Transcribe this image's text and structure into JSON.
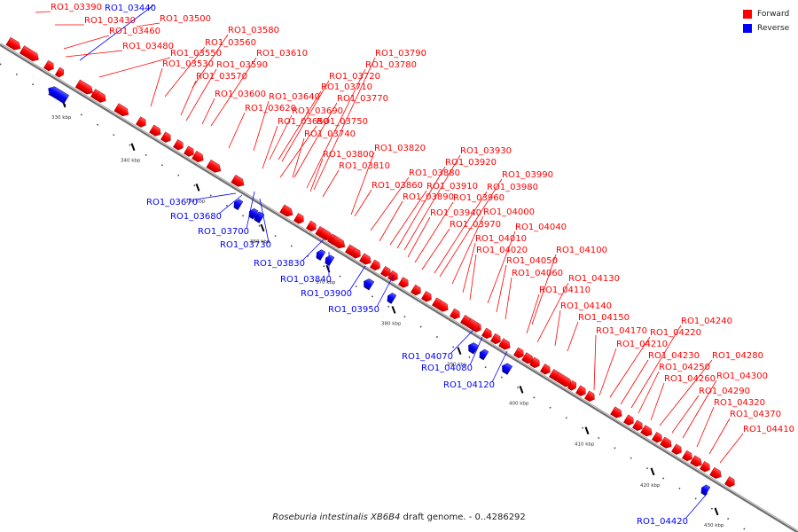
{
  "caption": {
    "organism": "Roseburia intestinalis XB6B4",
    "suffix": "draft genome. - 0..4286292"
  },
  "legend": [
    {
      "label": "Forward",
      "color": "#ff0000"
    },
    {
      "label": "Reverse",
      "color": "#0000ff"
    }
  ],
  "colors": {
    "forward": "#ff0000",
    "reverse": "#0000ff",
    "backbone": "#888888"
  },
  "scale": {
    "ticks": [
      {
        "kbp": 330,
        "label": "330 kbp"
      },
      {
        "kbp": 340,
        "label": "340 kbp"
      },
      {
        "kbp": 350,
        "label": "350 kbp"
      },
      {
        "kbp": 360,
        "label": "360 kbp"
      },
      {
        "kbp": 370,
        "label": "370 kbp"
      },
      {
        "kbp": 380,
        "label": "380 kbp"
      },
      {
        "kbp": 390,
        "label": "390 kbp"
      },
      {
        "kbp": 400,
        "label": "400 kbp"
      },
      {
        "kbp": 410,
        "label": "410 kbp"
      },
      {
        "kbp": 420,
        "label": "420 kbp"
      },
      {
        "kbp": 430,
        "label": "430 kbp"
      }
    ]
  },
  "genes": [
    {
      "id": "RO1_03390",
      "strand": "forward"
    },
    {
      "id": "RO1_03430",
      "strand": "forward"
    },
    {
      "id": "RO1_03440",
      "strand": "reverse"
    },
    {
      "id": "RO1_03460",
      "strand": "forward"
    },
    {
      "id": "RO1_03480",
      "strand": "forward"
    },
    {
      "id": "RO1_03500",
      "strand": "forward"
    },
    {
      "id": "RO1_03530",
      "strand": "forward"
    },
    {
      "id": "RO1_03550",
      "strand": "forward"
    },
    {
      "id": "RO1_03560",
      "strand": "forward"
    },
    {
      "id": "RO1_03570",
      "strand": "forward"
    },
    {
      "id": "RO1_03580",
      "strand": "forward"
    },
    {
      "id": "RO1_03590",
      "strand": "forward"
    },
    {
      "id": "RO1_03600",
      "strand": "forward"
    },
    {
      "id": "RO1_03610",
      "strand": "forward"
    },
    {
      "id": "RO1_03620",
      "strand": "forward"
    },
    {
      "id": "RO1_03640",
      "strand": "forward"
    },
    {
      "id": "RO1_03650",
      "strand": "forward"
    },
    {
      "id": "RO1_03670",
      "strand": "reverse"
    },
    {
      "id": "RO1_03680",
      "strand": "reverse"
    },
    {
      "id": "RO1_03690",
      "strand": "forward"
    },
    {
      "id": "RO1_03700",
      "strand": "reverse"
    },
    {
      "id": "RO1_03710",
      "strand": "forward"
    },
    {
      "id": "RO1_03720",
      "strand": "forward"
    },
    {
      "id": "RO1_03730",
      "strand": "reverse"
    },
    {
      "id": "RO1_03740",
      "strand": "forward"
    },
    {
      "id": "RO1_03750",
      "strand": "forward"
    },
    {
      "id": "RO1_03770",
      "strand": "forward"
    },
    {
      "id": "RO1_03780",
      "strand": "forward"
    },
    {
      "id": "RO1_03790",
      "strand": "forward"
    },
    {
      "id": "RO1_03800",
      "strand": "forward"
    },
    {
      "id": "RO1_03810",
      "strand": "forward"
    },
    {
      "id": "RO1_03820",
      "strand": "forward"
    },
    {
      "id": "RO1_03830",
      "strand": "reverse"
    },
    {
      "id": "RO1_03840",
      "strand": "reverse"
    },
    {
      "id": "RO1_03860",
      "strand": "forward"
    },
    {
      "id": "RO1_03880",
      "strand": "forward"
    },
    {
      "id": "RO1_03890",
      "strand": "forward"
    },
    {
      "id": "RO1_03900",
      "strand": "reverse"
    },
    {
      "id": "RO1_03910",
      "strand": "forward"
    },
    {
      "id": "RO1_03920",
      "strand": "forward"
    },
    {
      "id": "RO1_03930",
      "strand": "forward"
    },
    {
      "id": "RO1_03940",
      "strand": "forward"
    },
    {
      "id": "RO1_03950",
      "strand": "reverse"
    },
    {
      "id": "RO1_03960",
      "strand": "forward"
    },
    {
      "id": "RO1_03970",
      "strand": "forward"
    },
    {
      "id": "RO1_03980",
      "strand": "forward"
    },
    {
      "id": "RO1_03990",
      "strand": "forward"
    },
    {
      "id": "RO1_04000",
      "strand": "forward"
    },
    {
      "id": "RO1_04010",
      "strand": "forward"
    },
    {
      "id": "RO1_04020",
      "strand": "forward"
    },
    {
      "id": "RO1_04040",
      "strand": "forward"
    },
    {
      "id": "RO1_04050",
      "strand": "forward"
    },
    {
      "id": "RO1_04060",
      "strand": "forward"
    },
    {
      "id": "RO1_04070",
      "strand": "reverse"
    },
    {
      "id": "RO1_04080",
      "strand": "reverse"
    },
    {
      "id": "RO1_04100",
      "strand": "forward"
    },
    {
      "id": "RO1_04110",
      "strand": "forward"
    },
    {
      "id": "RO1_04120",
      "strand": "reverse"
    },
    {
      "id": "RO1_04130",
      "strand": "forward"
    },
    {
      "id": "RO1_04140",
      "strand": "forward"
    },
    {
      "id": "RO1_04150",
      "strand": "forward"
    },
    {
      "id": "RO1_04170",
      "strand": "forward"
    },
    {
      "id": "RO1_04210",
      "strand": "forward"
    },
    {
      "id": "RO1_04220",
      "strand": "forward"
    },
    {
      "id": "RO1_04230",
      "strand": "forward"
    },
    {
      "id": "RO1_04240",
      "strand": "forward"
    },
    {
      "id": "RO1_04250",
      "strand": "forward"
    },
    {
      "id": "RO1_04260",
      "strand": "forward"
    },
    {
      "id": "RO1_04280",
      "strand": "forward"
    },
    {
      "id": "RO1_04290",
      "strand": "forward"
    },
    {
      "id": "RO1_04300",
      "strand": "forward"
    },
    {
      "id": "RO1_04320",
      "strand": "forward"
    },
    {
      "id": "RO1_04370",
      "strand": "forward"
    },
    {
      "id": "RO1_04410",
      "strand": "forward"
    },
    {
      "id": "RO1_04420",
      "strand": "reverse"
    }
  ]
}
